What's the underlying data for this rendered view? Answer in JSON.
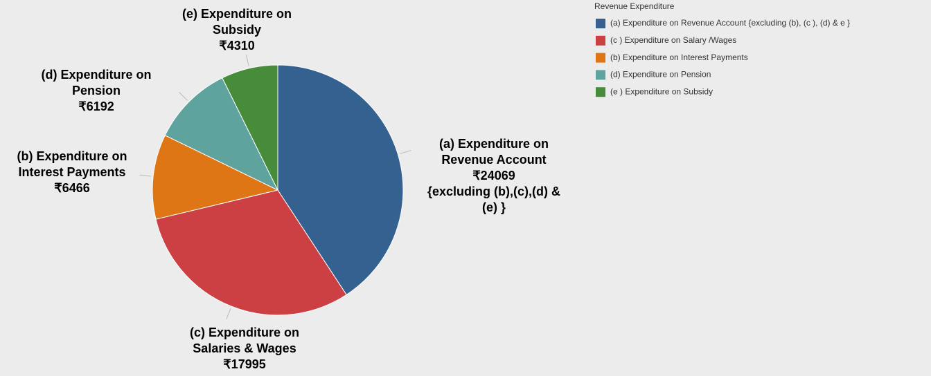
{
  "chart_data": {
    "type": "pie",
    "legend_title": "Revenue Expenditure",
    "categories": [
      "(a) Expenditure on Revenue Account {excluding (b), (c ), (d) & e }",
      "(c ) Expenditure on Salary /Wages",
      "(b) Expenditure on Interest Payments",
      "(d) Expenditure on Pension",
      "(e )  Expenditure on Subsidy"
    ],
    "values": [
      24069,
      17995,
      6466,
      6192,
      4310
    ],
    "value_labels": [
      "₹24069",
      "₹17995",
      "₹6466",
      "₹6192",
      "₹4310"
    ],
    "slice_labels": [
      {
        "before": [
          "(a) Expenditure on",
          "Revenue Account"
        ],
        "after": [
          "{excluding (b),(c),(d) &",
          "(e) }"
        ]
      },
      {
        "before": [
          "(c) Expenditure on",
          "Salaries & Wages"
        ],
        "after": []
      },
      {
        "before": [
          "(b) Expenditure on",
          "Interest Payments"
        ],
        "after": []
      },
      {
        "before": [
          "(d) Expenditure on",
          "Pension"
        ],
        "after": []
      },
      {
        "before": [
          "(e) Expenditure on",
          "Subsidy"
        ],
        "after": []
      }
    ],
    "colors": [
      "#356191",
      "#cc4043",
      "#df7616",
      "#5fa39e",
      "#478c3a"
    ],
    "legend": "top-right"
  }
}
